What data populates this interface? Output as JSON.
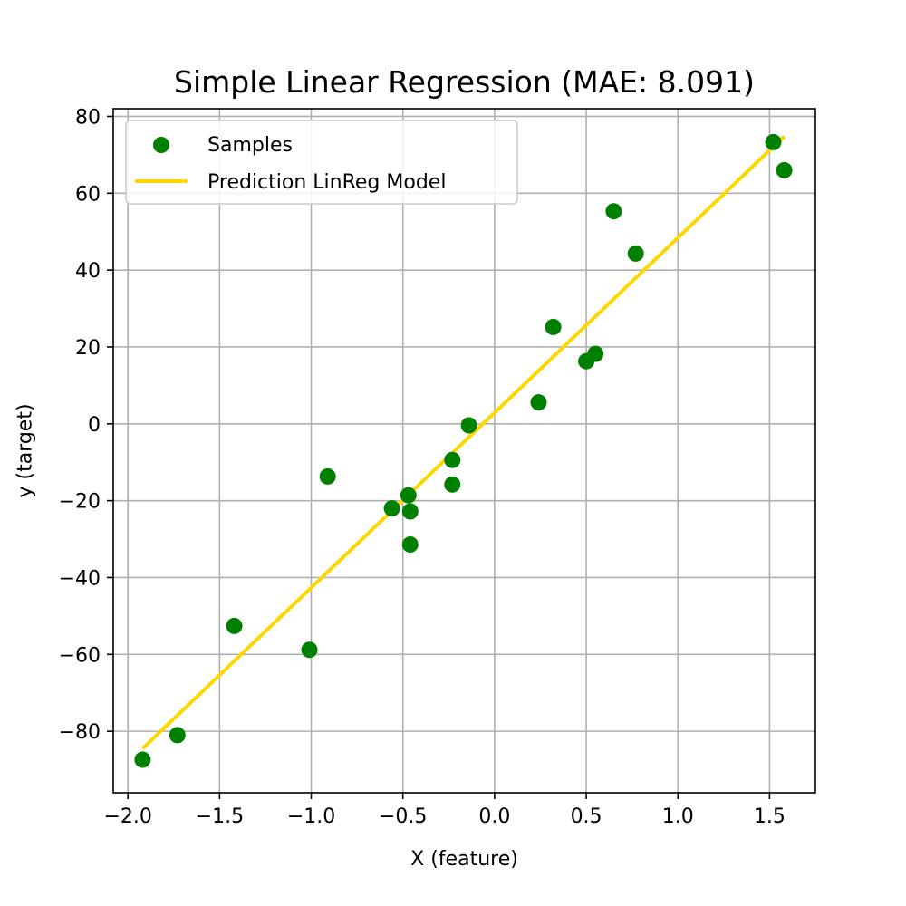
{
  "chart_data": {
    "type": "scatter",
    "title": "Simple Linear Regression (MAE: 8.091)",
    "xlabel": "X (feature)",
    "ylabel": "y (target)",
    "xlim": [
      -2.08,
      1.75
    ],
    "ylim": [
      -96,
      82
    ],
    "xticks": [
      -2.0,
      -1.5,
      -1.0,
      -0.5,
      0.0,
      0.5,
      1.0,
      1.5
    ],
    "xtick_labels": [
      "−2.0",
      "−1.5",
      "−1.0",
      "−0.5",
      "0.0",
      "0.5",
      "1.0",
      "1.5"
    ],
    "yticks": [
      -80,
      -60,
      -40,
      -20,
      0,
      20,
      40,
      60,
      80
    ],
    "ytick_labels": [
      "−80",
      "−60",
      "−40",
      "−20",
      "0",
      "20",
      "40",
      "60",
      "80"
    ],
    "grid": true,
    "legend_position": "top-left",
    "series": [
      {
        "name": "Samples",
        "kind": "scatter",
        "color": "#008000",
        "points": [
          [
            -1.92,
            -87.4
          ],
          [
            -1.73,
            -81.0
          ],
          [
            -1.42,
            -52.6
          ],
          [
            -1.01,
            -58.8
          ],
          [
            -0.91,
            -13.7
          ],
          [
            -0.56,
            -22.0
          ],
          [
            -0.47,
            -18.6
          ],
          [
            -0.46,
            -22.8
          ],
          [
            -0.46,
            -31.4
          ],
          [
            -0.23,
            -9.4
          ],
          [
            -0.23,
            -15.8
          ],
          [
            -0.14,
            -0.4
          ],
          [
            0.24,
            5.6
          ],
          [
            0.32,
            25.2
          ],
          [
            0.5,
            16.3
          ],
          [
            0.55,
            18.2
          ],
          [
            0.65,
            55.3
          ],
          [
            0.77,
            44.3
          ],
          [
            1.52,
            73.3
          ],
          [
            1.58,
            66.0
          ]
        ]
      },
      {
        "name": "Prediction LinReg Model",
        "kind": "line",
        "color": "#ffd700",
        "points": [
          [
            -1.92,
            -84.5
          ],
          [
            1.58,
            74.8
          ]
        ]
      }
    ]
  }
}
